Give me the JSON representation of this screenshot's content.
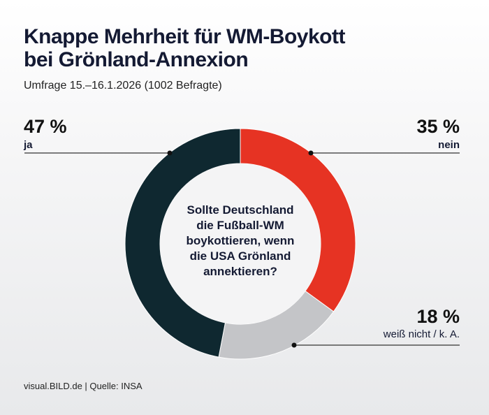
{
  "title_line1": "Knappe Mehrheit für WM-Boykott",
  "title_line2": "bei Grönland-Annexion",
  "subtitle": "Umfrage 15.–16.1.2026 (1002 Befragte)",
  "footer": "visual.BILD.de | Quelle: INSA",
  "chart_data": {
    "type": "pie",
    "variant": "donut",
    "question": [
      "Sollte Deutschland",
      "die Fußball-WM",
      "boykottieren, wenn",
      "die USA Grönland",
      "annektieren?"
    ],
    "slices": [
      {
        "label": "nein",
        "value": 35,
        "display": "35 %",
        "color": "#e63323"
      },
      {
        "label": "weiß nicht / k. A.",
        "value": 18,
        "display": "18 %",
        "color": "#c4c5c8"
      },
      {
        "label": "ja",
        "value": 47,
        "display": "47 %",
        "color": "#0f2830"
      }
    ]
  }
}
